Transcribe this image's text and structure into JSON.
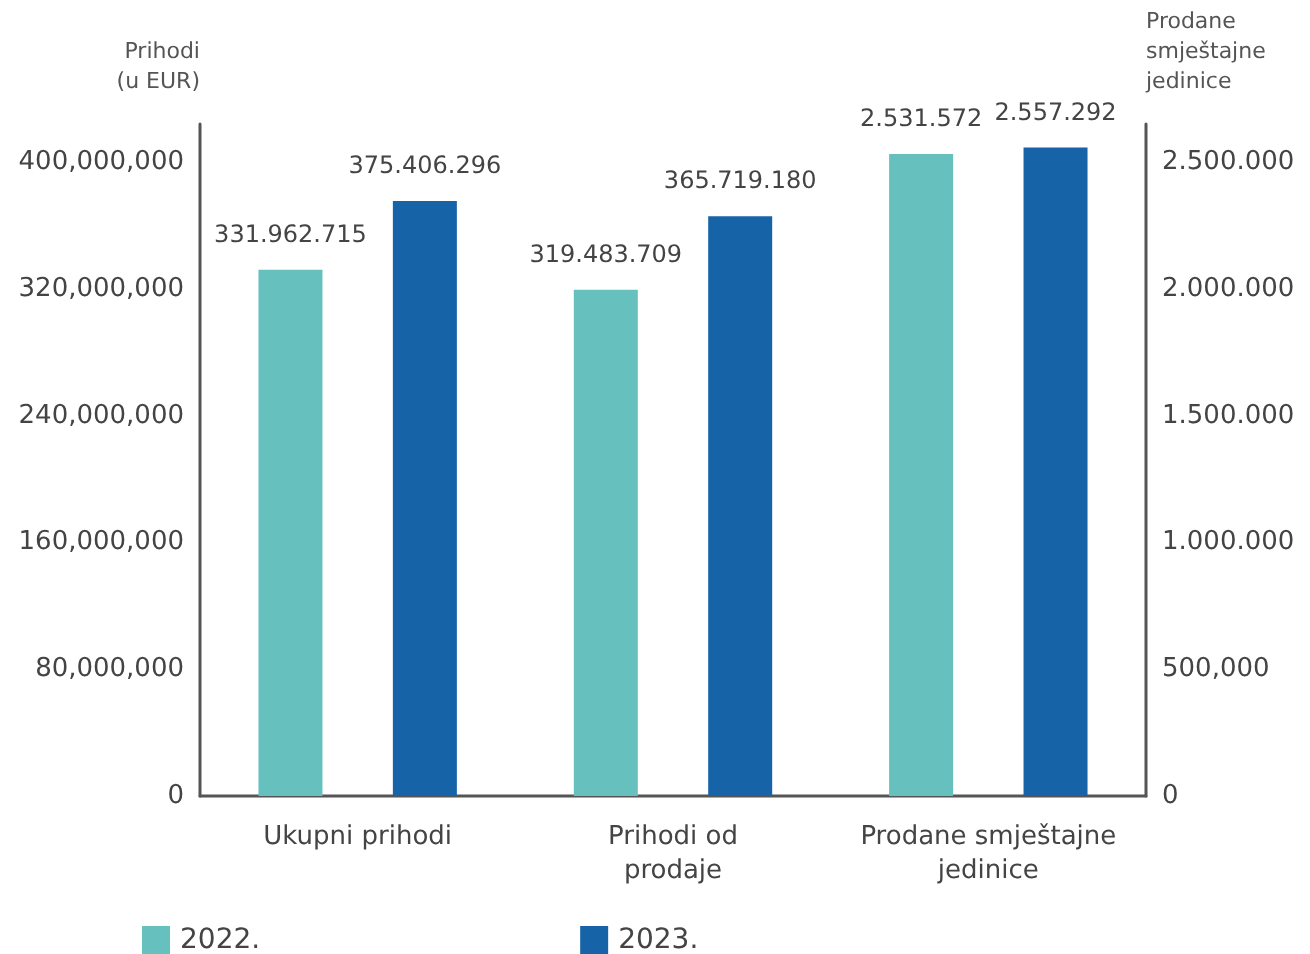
{
  "chart_data": {
    "type": "bar",
    "ylabel": "Prihodi\n(u EUR)",
    "y2label": "Prodane\nsmještajne\njedinice",
    "categories": [
      "Ukupni prihodi",
      "Prihodi od\nprodaje",
      "Prodane smještajne\njedinice"
    ],
    "series": [
      {
        "name": "2022.",
        "color": "#66c0bd",
        "values": [
          331962715,
          319483709,
          null
        ],
        "value_labels": [
          "331.962.715",
          "319.483.709",
          null
        ]
      },
      {
        "name": "2023.",
        "color": "#1763a8",
        "values": [
          375406296,
          365719180,
          null
        ],
        "value_labels": [
          "375.406.296",
          "365.719.180",
          null
        ]
      },
      {
        "color": "#66c0bd",
        "axis": "y2",
        "values": [
          null,
          null,
          2531572
        ],
        "value_labels": [
          null,
          null,
          "2.531.572"
        ]
      },
      {
        "color": "#1763a8",
        "axis": "y2",
        "values": [
          null,
          null,
          2557292
        ],
        "value_labels": [
          null,
          null,
          "2.557.292"
        ]
      }
    ],
    "ylim": [
      0,
      424000000
    ],
    "yticks": [
      0,
      {
        "value": 80000000,
        "label": "80,000,000"
      },
      {
        "value": 160000000,
        "label": "160,000,000"
      },
      {
        "value": 240000000,
        "label": "240,000,000"
      },
      {
        "value": 320000000,
        "label": "320,000,000"
      },
      {
        "value": 400000000,
        "label": "400,000,000"
      }
    ],
    "y2lim": [
      0,
      2650000
    ],
    "y2ticks": [
      0,
      {
        "value": 500000,
        "label": "500,000"
      },
      {
        "value": 1000000,
        "label": "1.000.000"
      },
      {
        "value": 1500000,
        "label": "1.500.000"
      },
      {
        "value": 2000000,
        "label": "2.000.000"
      },
      {
        "value": 2500000,
        "label": "2.500.000"
      }
    ],
    "grid": false,
    "legend": "bottom left"
  }
}
